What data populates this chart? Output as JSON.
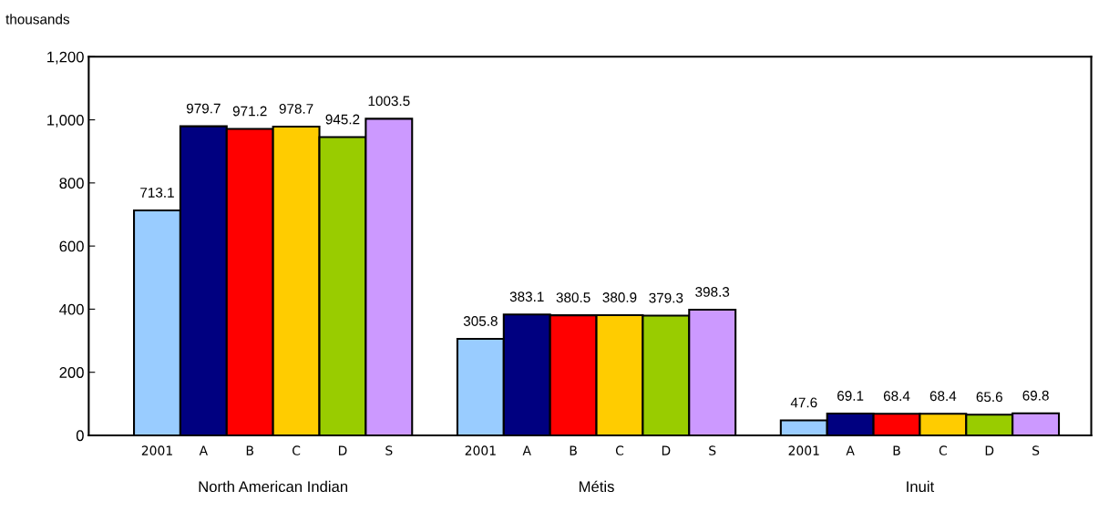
{
  "chart_data": {
    "type": "bar",
    "ylabel": "thousands",
    "categories": [
      "North American Indian",
      "Métis",
      "Inuit"
    ],
    "series": [
      {
        "name": "2001",
        "color": "#99ccff",
        "values": [
          713.1,
          305.8,
          47.6
        ]
      },
      {
        "name": "A",
        "color": "#000080",
        "values": [
          979.7,
          383.1,
          69.1
        ]
      },
      {
        "name": "B",
        "color": "#ff0000",
        "values": [
          971.2,
          380.5,
          68.4
        ]
      },
      {
        "name": "C",
        "color": "#ffcc00",
        "values": [
          978.7,
          380.9,
          68.4
        ]
      },
      {
        "name": "D",
        "color": "#99cc00",
        "values": [
          945.2,
          379.3,
          65.6
        ]
      },
      {
        "name": "S",
        "color": "#cc99ff",
        "values": [
          1003.5,
          398.3,
          69.8
        ]
      }
    ],
    "ylim": [
      0,
      1200
    ],
    "yticks": [
      0,
      200,
      400,
      600,
      800,
      {
        "value": 1000,
        "label": "1,000"
      },
      {
        "value": 1200,
        "label": "1,200"
      }
    ],
    "data_labels": true,
    "grid": false,
    "legend": false
  }
}
